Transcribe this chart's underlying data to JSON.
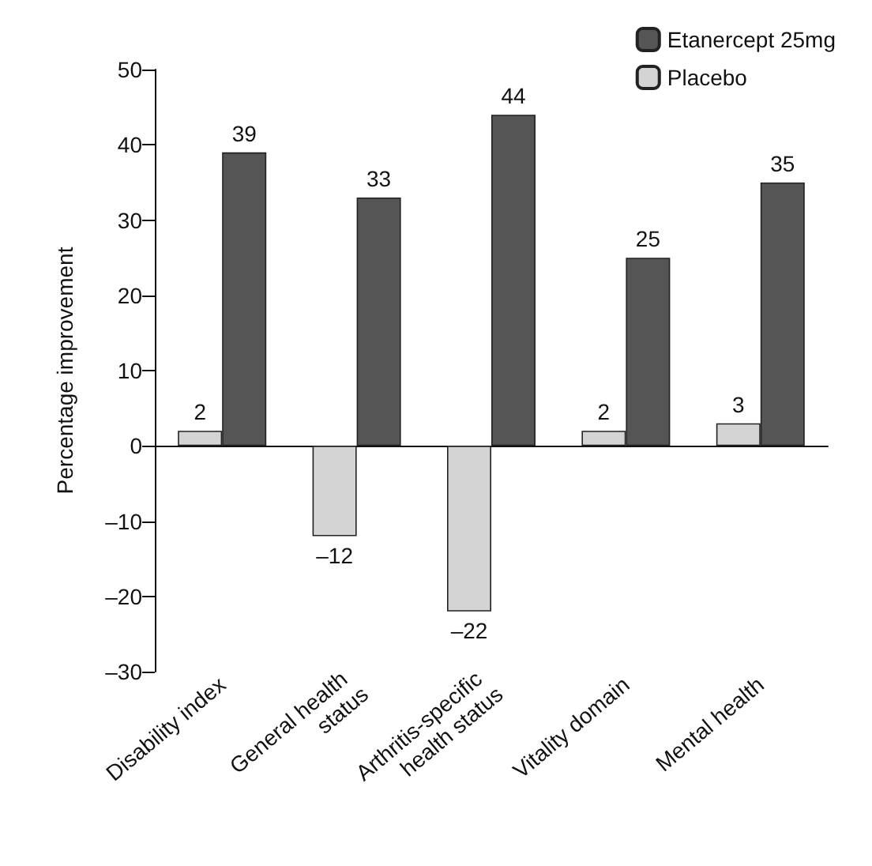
{
  "chart_data": {
    "type": "bar",
    "ylabel": "Percentage improvement",
    "categories": [
      "Disability index",
      "General health status",
      "Arthritis-specific health status",
      "Vitality domain",
      "Mental health"
    ],
    "series": [
      {
        "name": "Placebo",
        "color": "#d4d4d4",
        "values": [
          2,
          -12,
          -22,
          2,
          3
        ],
        "value_labels": [
          "2",
          "–12",
          "–22",
          "2",
          "3"
        ]
      },
      {
        "name": "Etanercept 25mg",
        "color": "#555555",
        "values": [
          39,
          33,
          44,
          25,
          35
        ],
        "value_labels": [
          "39",
          "33",
          "44",
          "25",
          "35"
        ]
      }
    ],
    "ylim": [
      -30,
      50
    ],
    "yticks": [
      {
        "value": -30,
        "label": "–30"
      },
      {
        "value": -20,
        "label": "–20"
      },
      {
        "value": -10,
        "label": "–10"
      },
      0,
      10,
      20,
      30,
      40,
      50
    ],
    "legend": "top right"
  }
}
